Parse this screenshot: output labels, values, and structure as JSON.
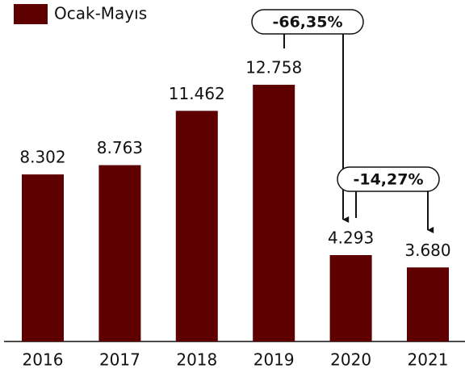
{
  "chart_data": {
    "type": "bar",
    "categories": [
      "2016",
      "2017",
      "2018",
      "2019",
      "2020",
      "2021"
    ],
    "series": [
      {
        "name": "Ocak-Mayıs",
        "color": "#5e0000",
        "values": [
          8302,
          8763,
          11462,
          12758,
          4293,
          3680
        ],
        "value_labels": [
          "8.302",
          "8.763",
          "11.462",
          "12.758",
          "4.293",
          "3.680"
        ]
      }
    ],
    "annotations": [
      "-66,35%",
      "-14,27%"
    ]
  }
}
